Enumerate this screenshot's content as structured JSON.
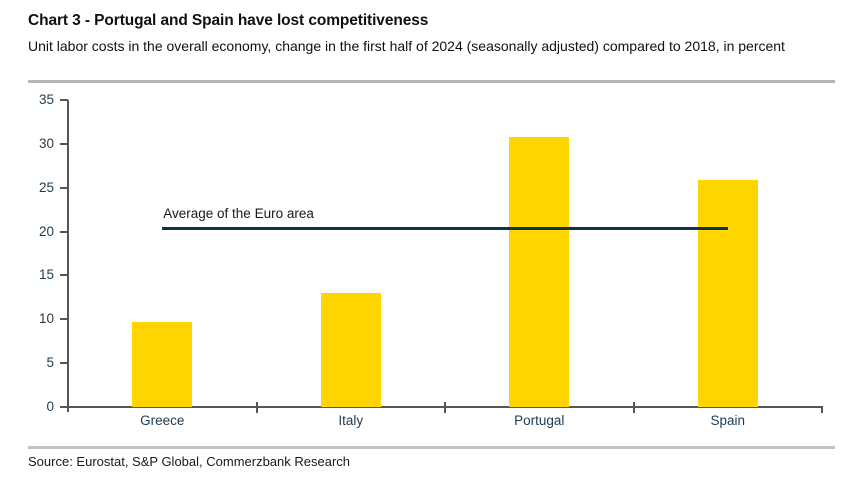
{
  "colors": {
    "bar": "#ffd500",
    "average_line": "#0e3444",
    "axis": "#555555",
    "tick_label": "#1f3a4f",
    "text": "#111111",
    "divider": "#b5b5b5"
  },
  "chart_data": {
    "type": "bar",
    "title": "Chart 3 - Portugal and Spain have lost competitiveness",
    "subtitle": "Unit labor costs in the overall economy, change in the first half of 2024 (seasonally adjusted) compared to 2018, in percent",
    "categories": [
      "Greece",
      "Italy",
      "Portugal",
      "Spain"
    ],
    "values": [
      9.7,
      13.0,
      30.8,
      25.9
    ],
    "bar_color": "#ffd500",
    "xlabel": "",
    "ylabel": "",
    "ylim": [
      0,
      35
    ],
    "yticks": [
      0,
      5,
      10,
      15,
      20,
      25,
      30,
      35
    ],
    "grid": false,
    "legend": "none",
    "reference_line": {
      "label": "Average of the Euro area",
      "value": 20.3,
      "span": "first-bar-center-to-last-bar-center"
    },
    "source": "Source: Eurostat, S&P Global, Commerzbank Research"
  }
}
